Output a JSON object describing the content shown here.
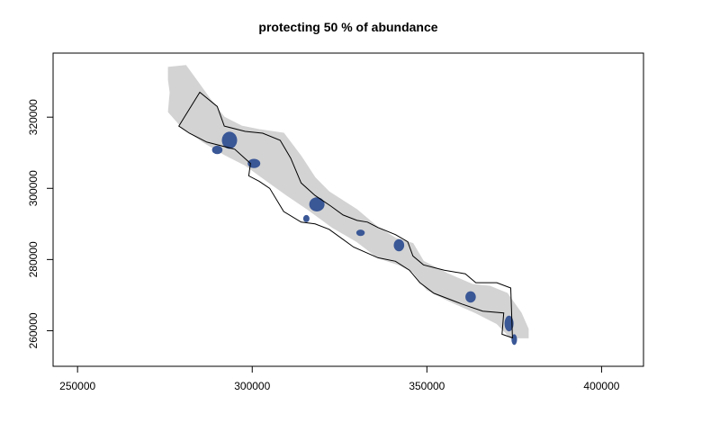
{
  "title": "protecting 50 % of abundance",
  "chart_data": {
    "type": "map",
    "title": "protecting 50 % of abundance",
    "xlim": [
      243000,
      412000
    ],
    "ylim": [
      250000,
      338000
    ],
    "x_ticks": [
      250000,
      300000,
      350000,
      400000
    ],
    "y_ticks": [
      260000,
      280000,
      300000,
      320000
    ],
    "x_tick_labels": [
      "250000",
      "300000",
      "350000",
      "400000"
    ],
    "y_tick_labels": [
      "260000",
      "280000",
      "300000",
      "320000"
    ],
    "colors": {
      "habitat": "#d3d3d3",
      "protected": "#3a5796",
      "boundary": "#000000",
      "frame": "#000000"
    },
    "habitat_region": [
      [
        276000,
        334000
      ],
      [
        281000,
        334500
      ],
      [
        284000,
        330500
      ],
      [
        288000,
        325000
      ],
      [
        292000,
        320000
      ],
      [
        297000,
        317500
      ],
      [
        302000,
        316500
      ],
      [
        309000,
        315500
      ],
      [
        314000,
        309000
      ],
      [
        318000,
        303000
      ],
      [
        322000,
        299000
      ],
      [
        330000,
        294000
      ],
      [
        336000,
        289000
      ],
      [
        341000,
        286000
      ],
      [
        346000,
        284500
      ],
      [
        349000,
        279500
      ],
      [
        356000,
        276000
      ],
      [
        363000,
        273000
      ],
      [
        368000,
        272500
      ],
      [
        373000,
        270500
      ],
      [
        377000,
        265000
      ],
      [
        379000,
        260500
      ],
      [
        379000,
        258000
      ],
      [
        374000,
        258000
      ],
      [
        370000,
        262000
      ],
      [
        364000,
        265000
      ],
      [
        356000,
        268500
      ],
      [
        350000,
        271500
      ],
      [
        346000,
        276500
      ],
      [
        342000,
        278500
      ],
      [
        336000,
        280500
      ],
      [
        330000,
        285000
      ],
      [
        323000,
        289000
      ],
      [
        316000,
        294000
      ],
      [
        310000,
        298000
      ],
      [
        305000,
        301500
      ],
      [
        298000,
        306500
      ],
      [
        292000,
        309500
      ],
      [
        286000,
        313000
      ],
      [
        280000,
        317000
      ],
      [
        276000,
        321500
      ],
      [
        276500,
        327000
      ],
      [
        276000,
        330500
      ]
    ],
    "boundary_polygon": [
      [
        279000,
        317500
      ],
      [
        285000,
        327000
      ],
      [
        290000,
        323000
      ],
      [
        292000,
        317500
      ],
      [
        298000,
        316000
      ],
      [
        303000,
        315500
      ],
      [
        308000,
        313500
      ],
      [
        311000,
        308500
      ],
      [
        314000,
        301500
      ],
      [
        318000,
        298000
      ],
      [
        322500,
        295000
      ],
      [
        326000,
        292500
      ],
      [
        330000,
        291000
      ],
      [
        333000,
        290500
      ],
      [
        336000,
        289000
      ],
      [
        341000,
        287000
      ],
      [
        344500,
        285000
      ],
      [
        346000,
        281000
      ],
      [
        349000,
        278500
      ],
      [
        355000,
        277000
      ],
      [
        361000,
        276000
      ],
      [
        364000,
        273500
      ],
      [
        370000,
        273500
      ],
      [
        374000,
        272000
      ],
      [
        374500,
        258000
      ],
      [
        371500,
        259000
      ],
      [
        372000,
        265000
      ],
      [
        366000,
        265500
      ],
      [
        360000,
        267500
      ],
      [
        352000,
        270500
      ],
      [
        348000,
        273500
      ],
      [
        345000,
        277000
      ],
      [
        341000,
        279500
      ],
      [
        336000,
        280500
      ],
      [
        329000,
        283500
      ],
      [
        322000,
        288500
      ],
      [
        318000,
        290000
      ],
      [
        314000,
        290500
      ],
      [
        309000,
        293500
      ],
      [
        305000,
        300000
      ],
      [
        302000,
        302000
      ],
      [
        299000,
        303500
      ],
      [
        299500,
        307000
      ],
      [
        295000,
        311000
      ],
      [
        287000,
        313000
      ],
      [
        282000,
        315500
      ]
    ],
    "protected_clusters": [
      {
        "x": 293500,
        "y": 313500,
        "rx": 2200,
        "ry": 2400
      },
      {
        "x": 290000,
        "y": 310800,
        "rx": 1500,
        "ry": 1200
      },
      {
        "x": 300500,
        "y": 307000,
        "rx": 1800,
        "ry": 1300
      },
      {
        "x": 318500,
        "y": 295500,
        "rx": 2200,
        "ry": 2000
      },
      {
        "x": 315500,
        "y": 291500,
        "rx": 900,
        "ry": 1000
      },
      {
        "x": 331000,
        "y": 287500,
        "rx": 1200,
        "ry": 900
      },
      {
        "x": 342000,
        "y": 284000,
        "rx": 1500,
        "ry": 1700
      },
      {
        "x": 362500,
        "y": 269500,
        "rx": 1500,
        "ry": 1600
      },
      {
        "x": 373500,
        "y": 262000,
        "rx": 1300,
        "ry": 2200
      },
      {
        "x": 375000,
        "y": 257500,
        "rx": 800,
        "ry": 1500
      }
    ]
  }
}
